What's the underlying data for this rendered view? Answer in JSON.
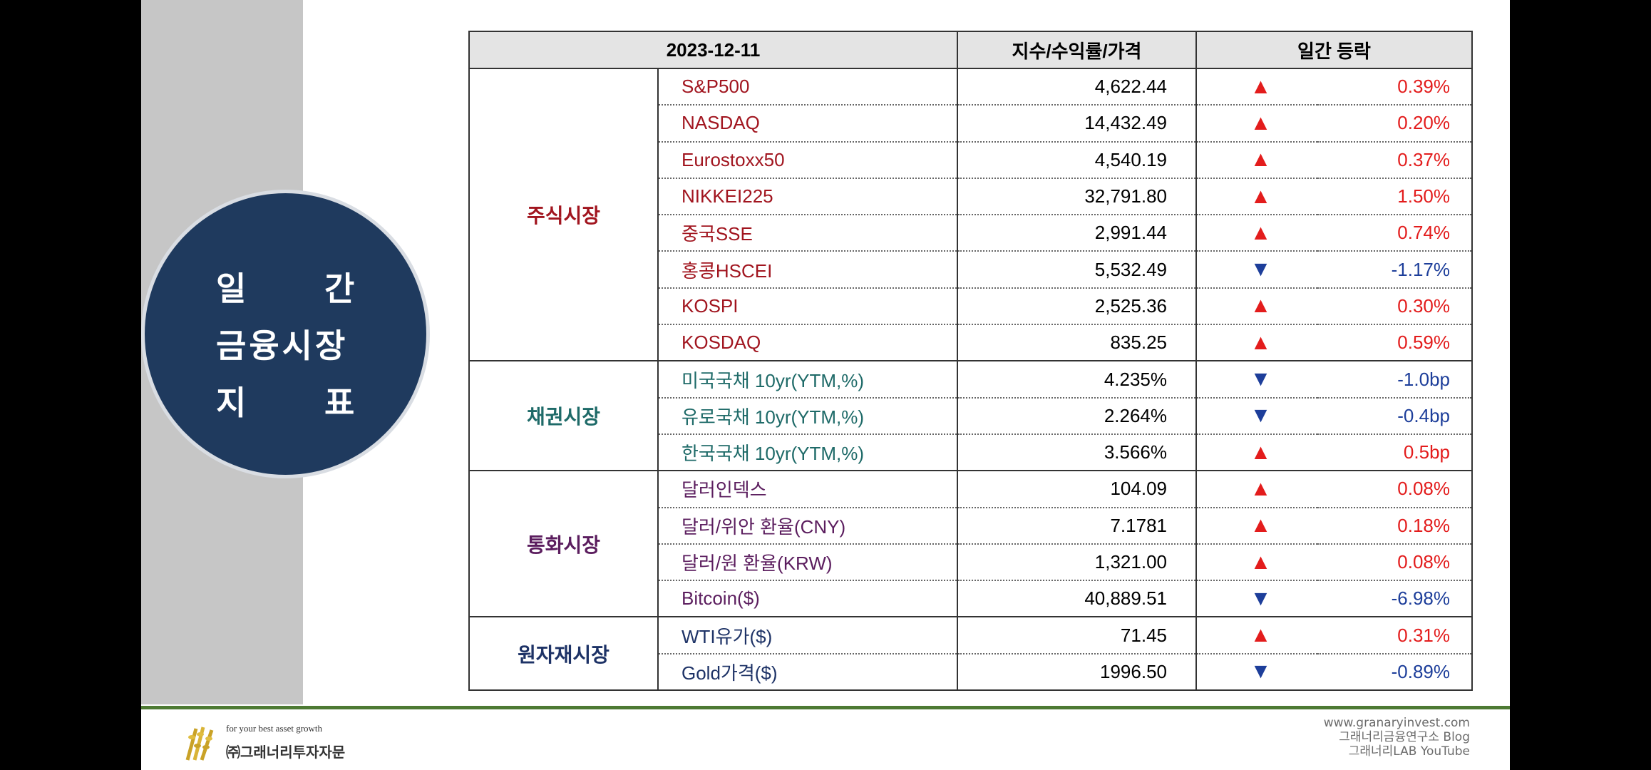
{
  "circle": {
    "line1_a": "일",
    "line1_b": "간",
    "line2": "금융시장",
    "line3_a": "지",
    "line3_b": "표"
  },
  "table": {
    "headers": [
      "2023-12-11",
      "지수/수익률/가격",
      "일간 등락"
    ],
    "groups": [
      {
        "category": "주식시장",
        "color": "#a1151f",
        "rows": [
          {
            "name": "S&P500",
            "value": "4,622.44",
            "dir": "up",
            "arrow": "▲",
            "change": "0.39%"
          },
          {
            "name": "NASDAQ",
            "value": "14,432.49",
            "dir": "up",
            "arrow": "▲",
            "change": "0.20%"
          },
          {
            "name": "Eurostoxx50",
            "value": "4,540.19",
            "dir": "up",
            "arrow": "▲",
            "change": "0.37%"
          },
          {
            "name": "NIKKEI225",
            "value": "32,791.80",
            "dir": "up",
            "arrow": "▲",
            "change": "1.50%"
          },
          {
            "name": "중국SSE",
            "value": "2,991.44",
            "dir": "up",
            "arrow": "▲",
            "change": "0.74%"
          },
          {
            "name": "홍콩HSCEI",
            "value": "5,532.49",
            "dir": "down",
            "arrow": "▼",
            "change": "-1.17%"
          },
          {
            "name": "KOSPI",
            "value": "2,525.36",
            "dir": "up",
            "arrow": "▲",
            "change": "0.30%"
          },
          {
            "name": "KOSDAQ",
            "value": "835.25",
            "dir": "up",
            "arrow": "▲",
            "change": "0.59%"
          }
        ]
      },
      {
        "category": "채권시장",
        "color": "#1e6a68",
        "rows": [
          {
            "name": "미국국채 10yr(YTM,%)",
            "value": "4.235%",
            "dir": "down",
            "arrow": "▼",
            "change": "-1.0bp"
          },
          {
            "name": "유로국채 10yr(YTM,%)",
            "value": "2.264%",
            "dir": "down",
            "arrow": "▼",
            "change": "-0.4bp"
          },
          {
            "name": "한국국채 10yr(YTM,%)",
            "value": "3.566%",
            "dir": "up",
            "arrow": "▲",
            "change": "0.5bp"
          }
        ]
      },
      {
        "category": "통화시장",
        "color": "#5b1d5e",
        "rows": [
          {
            "name": "달러인덱스",
            "value": "104.09",
            "dir": "up",
            "arrow": "▲",
            "change": "0.08%"
          },
          {
            "name": "달러/위안 환율(CNY)",
            "value": "7.1781",
            "dir": "up",
            "arrow": "▲",
            "change": "0.18%"
          },
          {
            "name": "달러/원 환율(KRW)",
            "value": "1,321.00",
            "dir": "up",
            "arrow": "▲",
            "change": "0.08%"
          },
          {
            "name": "Bitcoin($)",
            "value": "40,889.51",
            "dir": "down",
            "arrow": "▼",
            "change": "-6.98%"
          }
        ]
      },
      {
        "category": "원자재시장",
        "color": "#1d3266",
        "rows": [
          {
            "name": "WTI유가($)",
            "value": "71.45",
            "dir": "up",
            "arrow": "▲",
            "change": "0.31%"
          },
          {
            "name": "Gold가격($)",
            "value": "1996.50",
            "dir": "down",
            "arrow": "▼",
            "change": "-0.89%"
          }
        ]
      }
    ]
  },
  "footer": {
    "tagline": "for your best asset growth",
    "company": "㈜그래너리투자자문",
    "links": [
      "www.granaryinvest.com",
      "그래너리금융연구소 Blog",
      "그래너리LAB YouTube"
    ]
  },
  "colors": {
    "up": "#e31c1c",
    "down": "#1d3e9a",
    "circle": "#1f3a5e",
    "accent_line": "#4d7a33"
  }
}
